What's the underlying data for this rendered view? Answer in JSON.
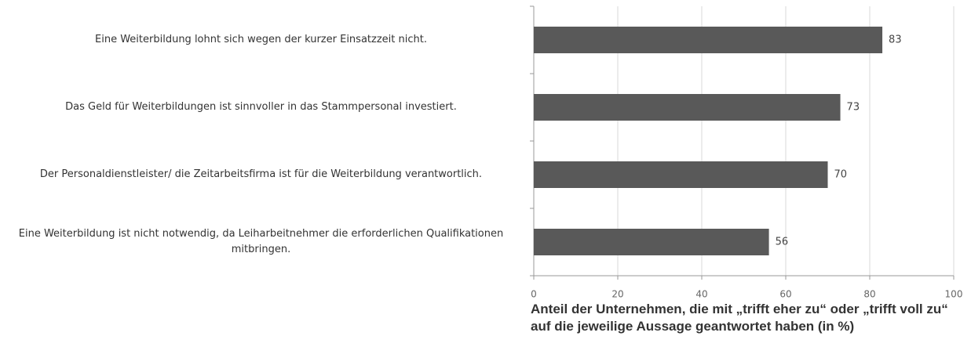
{
  "chart_data": {
    "type": "bar",
    "orientation": "horizontal",
    "categories": [
      "Eine Weiterbildung lohnt sich wegen der kurzer Einsatzzeit nicht.",
      "Das Geld für Weiterbildungen ist sinnvoller in das Stammpersonal investiert.",
      "Der Personaldienstleister/ die Zeitarbeitsfirma ist für die Weiterbildung verantwortlich.",
      "Eine Weiterbildung ist nicht notwendig, da Leiharbeitnehmer die erforderlichen Qualifikationen mitbringen."
    ],
    "values": [
      83,
      73,
      70,
      56
    ],
    "color": "#595959",
    "xlim": [
      0,
      100
    ],
    "xticks": [
      0,
      20,
      40,
      60,
      80,
      100
    ],
    "grid": true,
    "x_label": "Anteil der Unternehmen, die mit „trifft eher zu“ oder „trifft voll zu“ auf die jeweilige Aussage geantwortet haben (in %)"
  }
}
